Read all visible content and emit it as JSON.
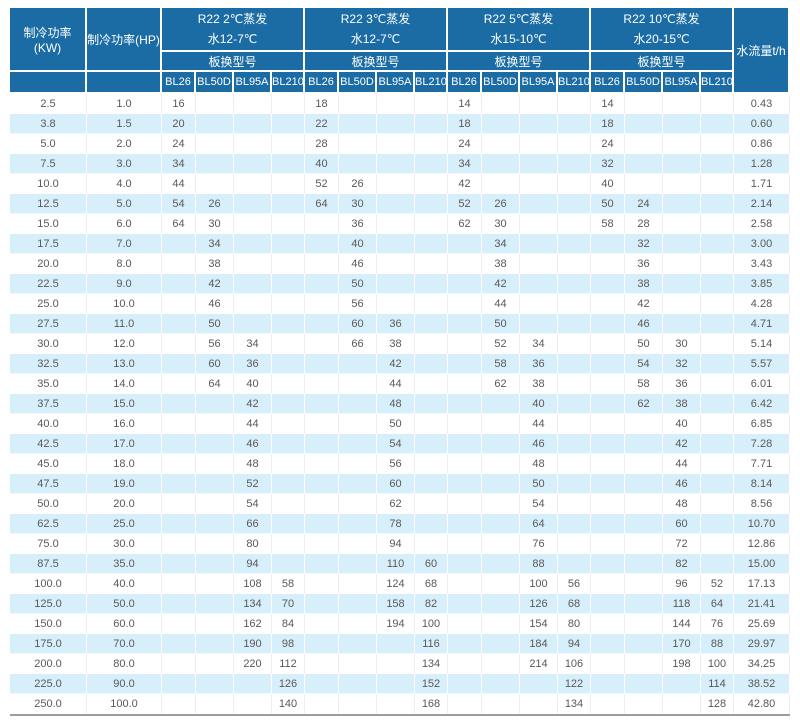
{
  "colors": {
    "header_bg": "#1b6ca5",
    "header_text": "#ffffff",
    "band_row_bg": "#d6effa",
    "plain_row_bg": "#ffffff",
    "data_text": "#595959",
    "table_bottom_border": "#9c9c9c",
    "grid_line": "#ededed"
  },
  "header": {
    "kw": "制冷功率(KW)",
    "hp": "制冷功率(HP)",
    "flow": "水流量t/h",
    "exchanger_label": "板换型号",
    "models": [
      "BL26",
      "BL50D",
      "BL95A",
      "BL210"
    ],
    "groups": [
      {
        "line1": "R22 2℃蒸发",
        "line2": "水12-7℃"
      },
      {
        "line1": "R22 3℃蒸发",
        "line2": "水12-7℃"
      },
      {
        "line1": "R22 5℃蒸发",
        "line2": "水15-10℃"
      },
      {
        "line1": "R22 10℃蒸发",
        "line2": "水20-15℃"
      }
    ]
  },
  "table": {
    "columns": [
      "KW",
      "HP",
      "2C_BL26",
      "2C_BL50D",
      "2C_BL95A",
      "2C_BL210",
      "3C_BL26",
      "3C_BL50D",
      "3C_BL95A",
      "3C_BL210",
      "5C_BL26",
      "5C_BL50D",
      "5C_BL95A",
      "5C_BL210",
      "10C_BL26",
      "10C_BL50D",
      "10C_BL95A",
      "10C_BL210",
      "flow"
    ],
    "rows": [
      [
        "2.5",
        "1.0",
        "16",
        "",
        "",
        "",
        "18",
        "",
        "",
        "",
        "14",
        "",
        "",
        "",
        "14",
        "",
        "",
        "",
        "0.43"
      ],
      [
        "3.8",
        "1.5",
        "20",
        "",
        "",
        "",
        "22",
        "",
        "",
        "",
        "18",
        "",
        "",
        "",
        "18",
        "",
        "",
        "",
        "0.60"
      ],
      [
        "5.0",
        "2.0",
        "24",
        "",
        "",
        "",
        "28",
        "",
        "",
        "",
        "24",
        "",
        "",
        "",
        "24",
        "",
        "",
        "",
        "0.86"
      ],
      [
        "7.5",
        "3.0",
        "34",
        "",
        "",
        "",
        "40",
        "",
        "",
        "",
        "34",
        "",
        "",
        "",
        "32",
        "",
        "",
        "",
        "1.28"
      ],
      [
        "10.0",
        "4.0",
        "44",
        "",
        "",
        "",
        "52",
        "26",
        "",
        "",
        "42",
        "",
        "",
        "",
        "40",
        "",
        "",
        "",
        "1.71"
      ],
      [
        "12.5",
        "5.0",
        "54",
        "26",
        "",
        "",
        "64",
        "30",
        "",
        "",
        "52",
        "26",
        "",
        "",
        "50",
        "24",
        "",
        "",
        "2.14"
      ],
      [
        "15.0",
        "6.0",
        "64",
        "30",
        "",
        "",
        "",
        "36",
        "",
        "",
        "62",
        "30",
        "",
        "",
        "58",
        "28",
        "",
        "",
        "2.58"
      ],
      [
        "17.5",
        "7.0",
        "",
        "34",
        "",
        "",
        "",
        "40",
        "",
        "",
        "",
        "34",
        "",
        "",
        "",
        "32",
        "",
        "",
        "3.00"
      ],
      [
        "20.0",
        "8.0",
        "",
        "38",
        "",
        "",
        "",
        "46",
        "",
        "",
        "",
        "38",
        "",
        "",
        "",
        "36",
        "",
        "",
        "3.43"
      ],
      [
        "22.5",
        "9.0",
        "",
        "42",
        "",
        "",
        "",
        "50",
        "",
        "",
        "",
        "42",
        "",
        "",
        "",
        "38",
        "",
        "",
        "3.85"
      ],
      [
        "25.0",
        "10.0",
        "",
        "46",
        "",
        "",
        "",
        "56",
        "",
        "",
        "",
        "44",
        "",
        "",
        "",
        "42",
        "",
        "",
        "4.28"
      ],
      [
        "27.5",
        "11.0",
        "",
        "50",
        "",
        "",
        "",
        "60",
        "36",
        "",
        "",
        "50",
        "",
        "",
        "",
        "46",
        "",
        "",
        "4.71"
      ],
      [
        "30.0",
        "12.0",
        "",
        "56",
        "34",
        "",
        "",
        "66",
        "38",
        "",
        "",
        "52",
        "34",
        "",
        "",
        "50",
        "30",
        "",
        "5.14"
      ],
      [
        "32.5",
        "13.0",
        "",
        "60",
        "36",
        "",
        "",
        "",
        "42",
        "",
        "",
        "58",
        "36",
        "",
        "",
        "54",
        "32",
        "",
        "5.57"
      ],
      [
        "35.0",
        "14.0",
        "",
        "64",
        "40",
        "",
        "",
        "",
        "44",
        "",
        "",
        "62",
        "38",
        "",
        "",
        "58",
        "36",
        "",
        "6.01"
      ],
      [
        "37.5",
        "15.0",
        "",
        "",
        "42",
        "",
        "",
        "",
        "48",
        "",
        "",
        "",
        "40",
        "",
        "",
        "62",
        "38",
        "",
        "6.42"
      ],
      [
        "40.0",
        "16.0",
        "",
        "",
        "44",
        "",
        "",
        "",
        "50",
        "",
        "",
        "",
        "44",
        "",
        "",
        "",
        "40",
        "",
        "6.85"
      ],
      [
        "42.5",
        "17.0",
        "",
        "",
        "46",
        "",
        "",
        "",
        "54",
        "",
        "",
        "",
        "46",
        "",
        "",
        "",
        "42",
        "",
        "7.28"
      ],
      [
        "45.0",
        "18.0",
        "",
        "",
        "48",
        "",
        "",
        "",
        "56",
        "",
        "",
        "",
        "48",
        "",
        "",
        "",
        "44",
        "",
        "7.71"
      ],
      [
        "47.5",
        "19.0",
        "",
        "",
        "52",
        "",
        "",
        "",
        "60",
        "",
        "",
        "",
        "50",
        "",
        "",
        "",
        "46",
        "",
        "8.14"
      ],
      [
        "50.0",
        "20.0",
        "",
        "",
        "54",
        "",
        "",
        "",
        "62",
        "",
        "",
        "",
        "54",
        "",
        "",
        "",
        "48",
        "",
        "8.56"
      ],
      [
        "62.5",
        "25.0",
        "",
        "",
        "66",
        "",
        "",
        "",
        "78",
        "",
        "",
        "",
        "64",
        "",
        "",
        "",
        "60",
        "",
        "10.70"
      ],
      [
        "75.0",
        "30.0",
        "",
        "",
        "80",
        "",
        "",
        "",
        "94",
        "",
        "",
        "",
        "76",
        "",
        "",
        "",
        "72",
        "",
        "12.86"
      ],
      [
        "87.5",
        "35.0",
        "",
        "",
        "94",
        "",
        "",
        "",
        "110",
        "60",
        "",
        "",
        "88",
        "",
        "",
        "",
        "82",
        "",
        "15.00"
      ],
      [
        "100.0",
        "40.0",
        "",
        "",
        "108",
        "58",
        "",
        "",
        "124",
        "68",
        "",
        "",
        "100",
        "56",
        "",
        "",
        "96",
        "52",
        "17.13"
      ],
      [
        "125.0",
        "50.0",
        "",
        "",
        "134",
        "70",
        "",
        "",
        "158",
        "82",
        "",
        "",
        "126",
        "68",
        "",
        "",
        "118",
        "64",
        "21.41"
      ],
      [
        "150.0",
        "60.0",
        "",
        "",
        "162",
        "84",
        "",
        "",
        "194",
        "100",
        "",
        "",
        "154",
        "80",
        "",
        "",
        "144",
        "76",
        "25.69"
      ],
      [
        "175.0",
        "70.0",
        "",
        "",
        "190",
        "98",
        "",
        "",
        "",
        "116",
        "",
        "",
        "184",
        "94",
        "",
        "",
        "170",
        "88",
        "29.97"
      ],
      [
        "200.0",
        "80.0",
        "",
        "",
        "220",
        "112",
        "",
        "",
        "",
        "134",
        "",
        "",
        "214",
        "106",
        "",
        "",
        "198",
        "100",
        "34.25"
      ],
      [
        "225.0",
        "90.0",
        "",
        "",
        "",
        "126",
        "",
        "",
        "",
        "152",
        "",
        "",
        "",
        "122",
        "",
        "",
        "",
        "114",
        "38.52"
      ],
      [
        "250.0",
        "100.0",
        "",
        "",
        "",
        "140",
        "",
        "",
        "",
        "168",
        "",
        "",
        "",
        "134",
        "",
        "",
        "",
        "128",
        "42.80"
      ]
    ]
  }
}
